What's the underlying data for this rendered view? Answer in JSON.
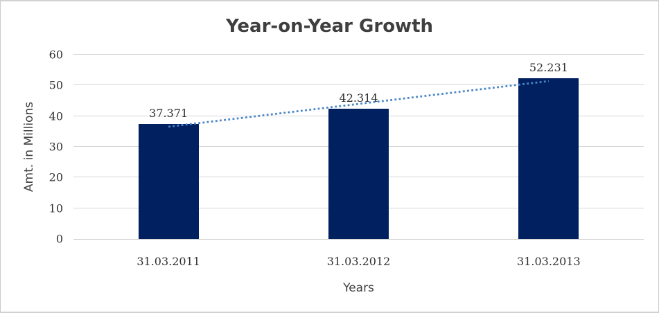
{
  "chart_data": {
    "type": "bar",
    "title": "Year-on-Year Growth",
    "categories": [
      "31.03.2011",
      "31.03.2012",
      "31.03.2013"
    ],
    "values": [
      37.371,
      42.314,
      52.231
    ],
    "value_labels": [
      "37.371",
      "42.314",
      "52.231"
    ],
    "xlabel": "Years",
    "ylabel": "Amt. in Millions",
    "ylim": [
      0,
      60
    ],
    "yticks": [
      0,
      10,
      20,
      30,
      40,
      50,
      60
    ],
    "grid": true,
    "legend": "none",
    "bar_color": "#002060",
    "gridline_color": "#d6d6d6",
    "text_color": "#303030",
    "trendline": {
      "type": "linear",
      "style": "dotted",
      "color": "#4a86c8"
    }
  }
}
